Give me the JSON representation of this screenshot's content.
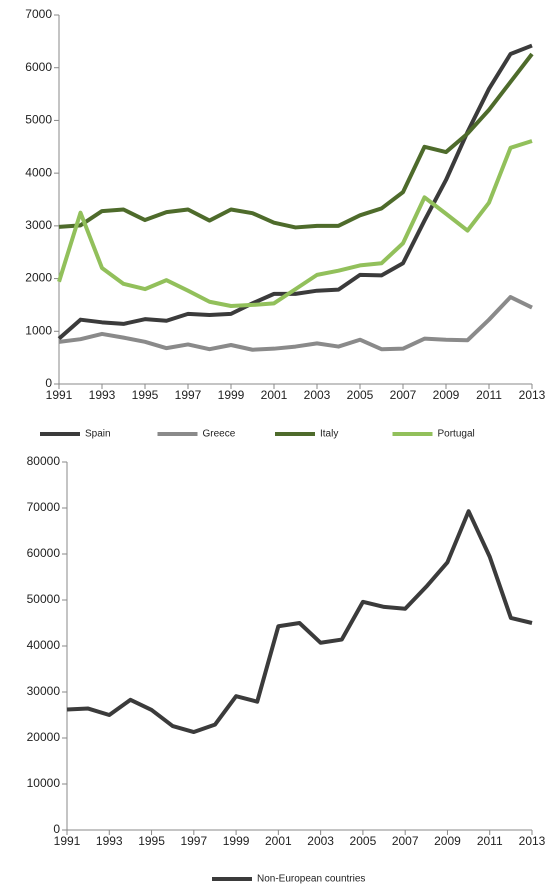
{
  "chart_data": [
    {
      "type": "line",
      "x": [
        1991,
        1992,
        1993,
        1994,
        1995,
        1996,
        1997,
        1998,
        1999,
        2000,
        2001,
        2002,
        2003,
        2004,
        2005,
        2006,
        2007,
        2008,
        2009,
        2010,
        2011,
        2012,
        2013
      ],
      "xlim": [
        1991,
        2013
      ],
      "xticks": [
        1991,
        1993,
        1995,
        1997,
        1999,
        2001,
        2003,
        2005,
        2007,
        2009,
        2011,
        2013
      ],
      "ylim": [
        0,
        7000
      ],
      "yticks": [
        0,
        1000,
        2000,
        3000,
        4000,
        5000,
        6000,
        7000
      ],
      "series": [
        {
          "name": "Spain",
          "color": "#3b3b3b",
          "values": [
            860,
            1220,
            1170,
            1140,
            1230,
            1200,
            1330,
            1310,
            1330,
            1530,
            1710,
            1710,
            1770,
            1790,
            2070,
            2060,
            2290,
            3100,
            3870,
            4780,
            5600,
            6260,
            6420
          ]
        },
        {
          "name": "Greece",
          "color": "#8a8a8a",
          "values": [
            800,
            850,
            950,
            880,
            800,
            680,
            750,
            660,
            740,
            650,
            670,
            710,
            770,
            710,
            840,
            660,
            670,
            860,
            840,
            830,
            1220,
            1650,
            1450
          ]
        },
        {
          "name": "Italy",
          "color": "#4e6b2b",
          "values": [
            2980,
            3010,
            3280,
            3310,
            3110,
            3260,
            3310,
            3100,
            3310,
            3240,
            3060,
            2970,
            3000,
            3000,
            3200,
            3330,
            3640,
            4500,
            4400,
            4750,
            5200,
            5730,
            6260
          ]
        },
        {
          "name": "Portugal",
          "color": "#92c05b",
          "values": [
            1940,
            3250,
            2200,
            1900,
            1800,
            1970,
            1770,
            1560,
            1480,
            1500,
            1530,
            1800,
            2070,
            2150,
            2250,
            2290,
            2670,
            3540,
            3230,
            2910,
            3440,
            4480,
            4610
          ]
        }
      ]
    },
    {
      "type": "line",
      "x": [
        1991,
        1992,
        1993,
        1994,
        1995,
        1996,
        1997,
        1998,
        1999,
        2000,
        2001,
        2002,
        2003,
        2004,
        2005,
        2006,
        2007,
        2008,
        2009,
        2010,
        2011,
        2012,
        2013
      ],
      "xlim": [
        1991,
        2013
      ],
      "xticks": [
        1991,
        1993,
        1995,
        1997,
        1999,
        2001,
        2003,
        2005,
        2007,
        2009,
        2011,
        2013
      ],
      "ylim": [
        0,
        80000
      ],
      "yticks": [
        0,
        10000,
        20000,
        30000,
        40000,
        50000,
        60000,
        70000,
        80000
      ],
      "series": [
        {
          "name": "Non-European countries",
          "color": "#3b3b3b",
          "values": [
            26200,
            26400,
            25000,
            28300,
            26100,
            22600,
            21300,
            22900,
            29100,
            27900,
            44300,
            45000,
            40700,
            41400,
            49600,
            48500,
            48100,
            52900,
            58200,
            69300,
            59400,
            46100,
            45000
          ]
        }
      ]
    }
  ]
}
